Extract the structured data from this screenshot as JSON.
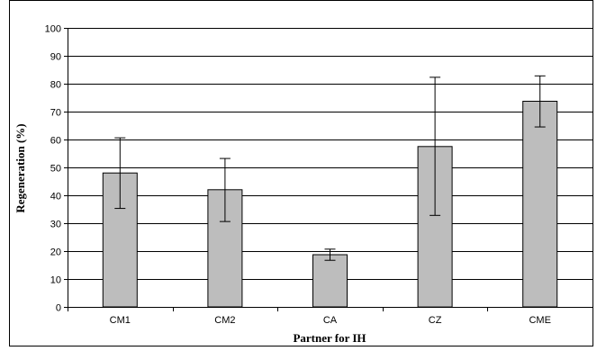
{
  "chart_data": {
    "type": "bar",
    "title": "",
    "xlabel": "Partner for IH",
    "ylabel": "Regeneration (%)",
    "categories": [
      "CM1",
      "CM2",
      "CA",
      "CZ",
      "CME"
    ],
    "values": [
      48,
      42,
      18.7,
      57.5,
      73.7
    ],
    "error_low": [
      35.3,
      30.6,
      16.7,
      32.8,
      64.5
    ],
    "error_high": [
      60.6,
      53.2,
      20.7,
      82.3,
      82.8
    ],
    "ylim": [
      0,
      100
    ],
    "yticks": [
      0,
      10,
      20,
      30,
      40,
      50,
      60,
      70,
      80,
      90,
      100
    ],
    "grid": true,
    "legend": "none",
    "bar_color": "#bdbdbd"
  }
}
